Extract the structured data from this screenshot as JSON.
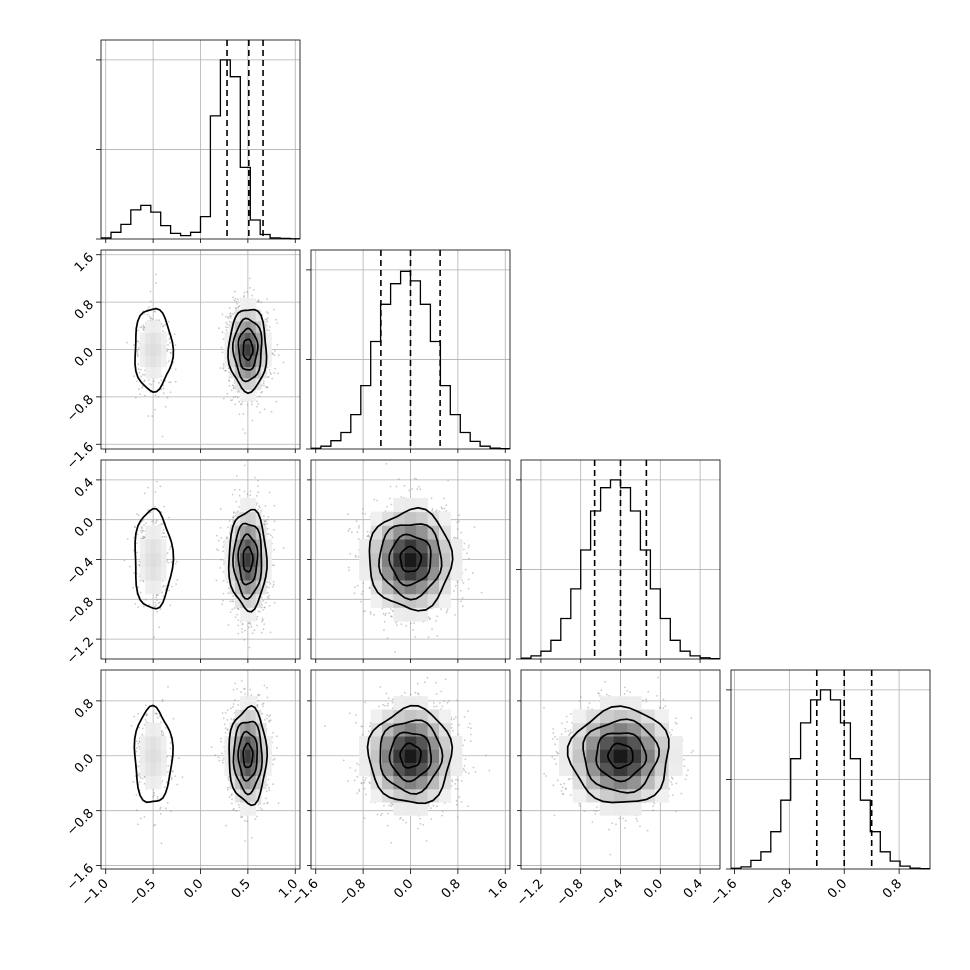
{
  "chart_data": {
    "type": "corner",
    "grid": true,
    "params": [
      {
        "range": [
          -1.05,
          1.05
        ],
        "ticks": [
          -1.0,
          -0.5,
          0.0,
          0.5,
          1.0
        ],
        "tick_labels": [
          "−1.0",
          "−0.5",
          "0.0",
          "0.5",
          "1.0"
        ],
        "quantiles": [
          0.28,
          0.51,
          0.66
        ],
        "hist_max": 1600,
        "hist_ticks": [
          0,
          800,
          1600
        ],
        "histogram": {
          "bin_start": -1.05,
          "bin_width": 0.105,
          "counts": [
            10,
            60,
            130,
            260,
            300,
            240,
            120,
            50,
            30,
            60,
            200,
            1100,
            1600,
            1450,
            640,
            170,
            40,
            10,
            5,
            2
          ]
        },
        "modes": [
          {
            "mean": -0.5,
            "sd": 0.1,
            "weight": 0.15
          },
          {
            "mean": 0.5,
            "sd": 0.1,
            "weight": 0.85
          }
        ]
      },
      {
        "range": [
          -1.68,
          1.68
        ],
        "ticks": [
          -1.6,
          -0.8,
          0.0,
          0.8,
          1.6
        ],
        "tick_labels": [
          "−1.6",
          "−0.8",
          "0.0",
          "0.8",
          "1.6"
        ],
        "quantiles": [
          -0.5,
          0.0,
          0.5
        ],
        "hist_max": 1300,
        "hist_ticks": [
          0,
          650,
          1300
        ],
        "histogram": {
          "bin_start": -1.68,
          "bin_width": 0.168,
          "counts": [
            5,
            20,
            60,
            120,
            250,
            460,
            780,
            1050,
            1200,
            1290,
            1220,
            1050,
            780,
            460,
            250,
            120,
            55,
            20,
            6,
            2
          ]
        },
        "modes": [
          {
            "mean": 0.0,
            "sd": 0.35,
            "weight": 1.0
          }
        ]
      },
      {
        "range": [
          -1.4,
          0.6
        ],
        "ticks": [
          -1.2,
          -0.8,
          -0.4,
          0.0,
          0.4
        ],
        "tick_labels": [
          "−1.2",
          "−0.8",
          "−0.4",
          "0.0",
          "0.4"
        ],
        "quantiles": [
          -0.66,
          -0.4,
          -0.14
        ],
        "hist_max": 1150,
        "hist_ticks": [
          0,
          575,
          1150
        ],
        "histogram": {
          "bin_start": -1.4,
          "bin_width": 0.1,
          "counts": [
            5,
            20,
            50,
            120,
            260,
            450,
            700,
            950,
            1100,
            1150,
            1100,
            950,
            700,
            450,
            260,
            120,
            50,
            20,
            8,
            2
          ]
        },
        "modes": [
          {
            "mean": -0.4,
            "sd": 0.25,
            "weight": 1.0
          }
        ]
      },
      {
        "range": [
          -1.65,
          1.25
        ],
        "ticks": [
          -1.6,
          -0.8,
          0.0,
          0.8
        ],
        "tick_labels": [
          "−1.6",
          "−0.8",
          "0.0",
          "0.8"
        ],
        "quantiles": [
          -0.4,
          0.0,
          0.4
        ],
        "hist_max": 1250,
        "hist_ticks": [
          0,
          625,
          1250
        ],
        "histogram": {
          "bin_start": -1.65,
          "bin_width": 0.145,
          "counts": [
            5,
            15,
            60,
            120,
            260,
            480,
            770,
            1020,
            1180,
            1250,
            1180,
            1020,
            770,
            480,
            260,
            120,
            55,
            20,
            6,
            2
          ]
        },
        "modes": [
          {
            "mean": 0.0,
            "sd": 0.35,
            "weight": 1.0
          }
        ]
      }
    ]
  }
}
